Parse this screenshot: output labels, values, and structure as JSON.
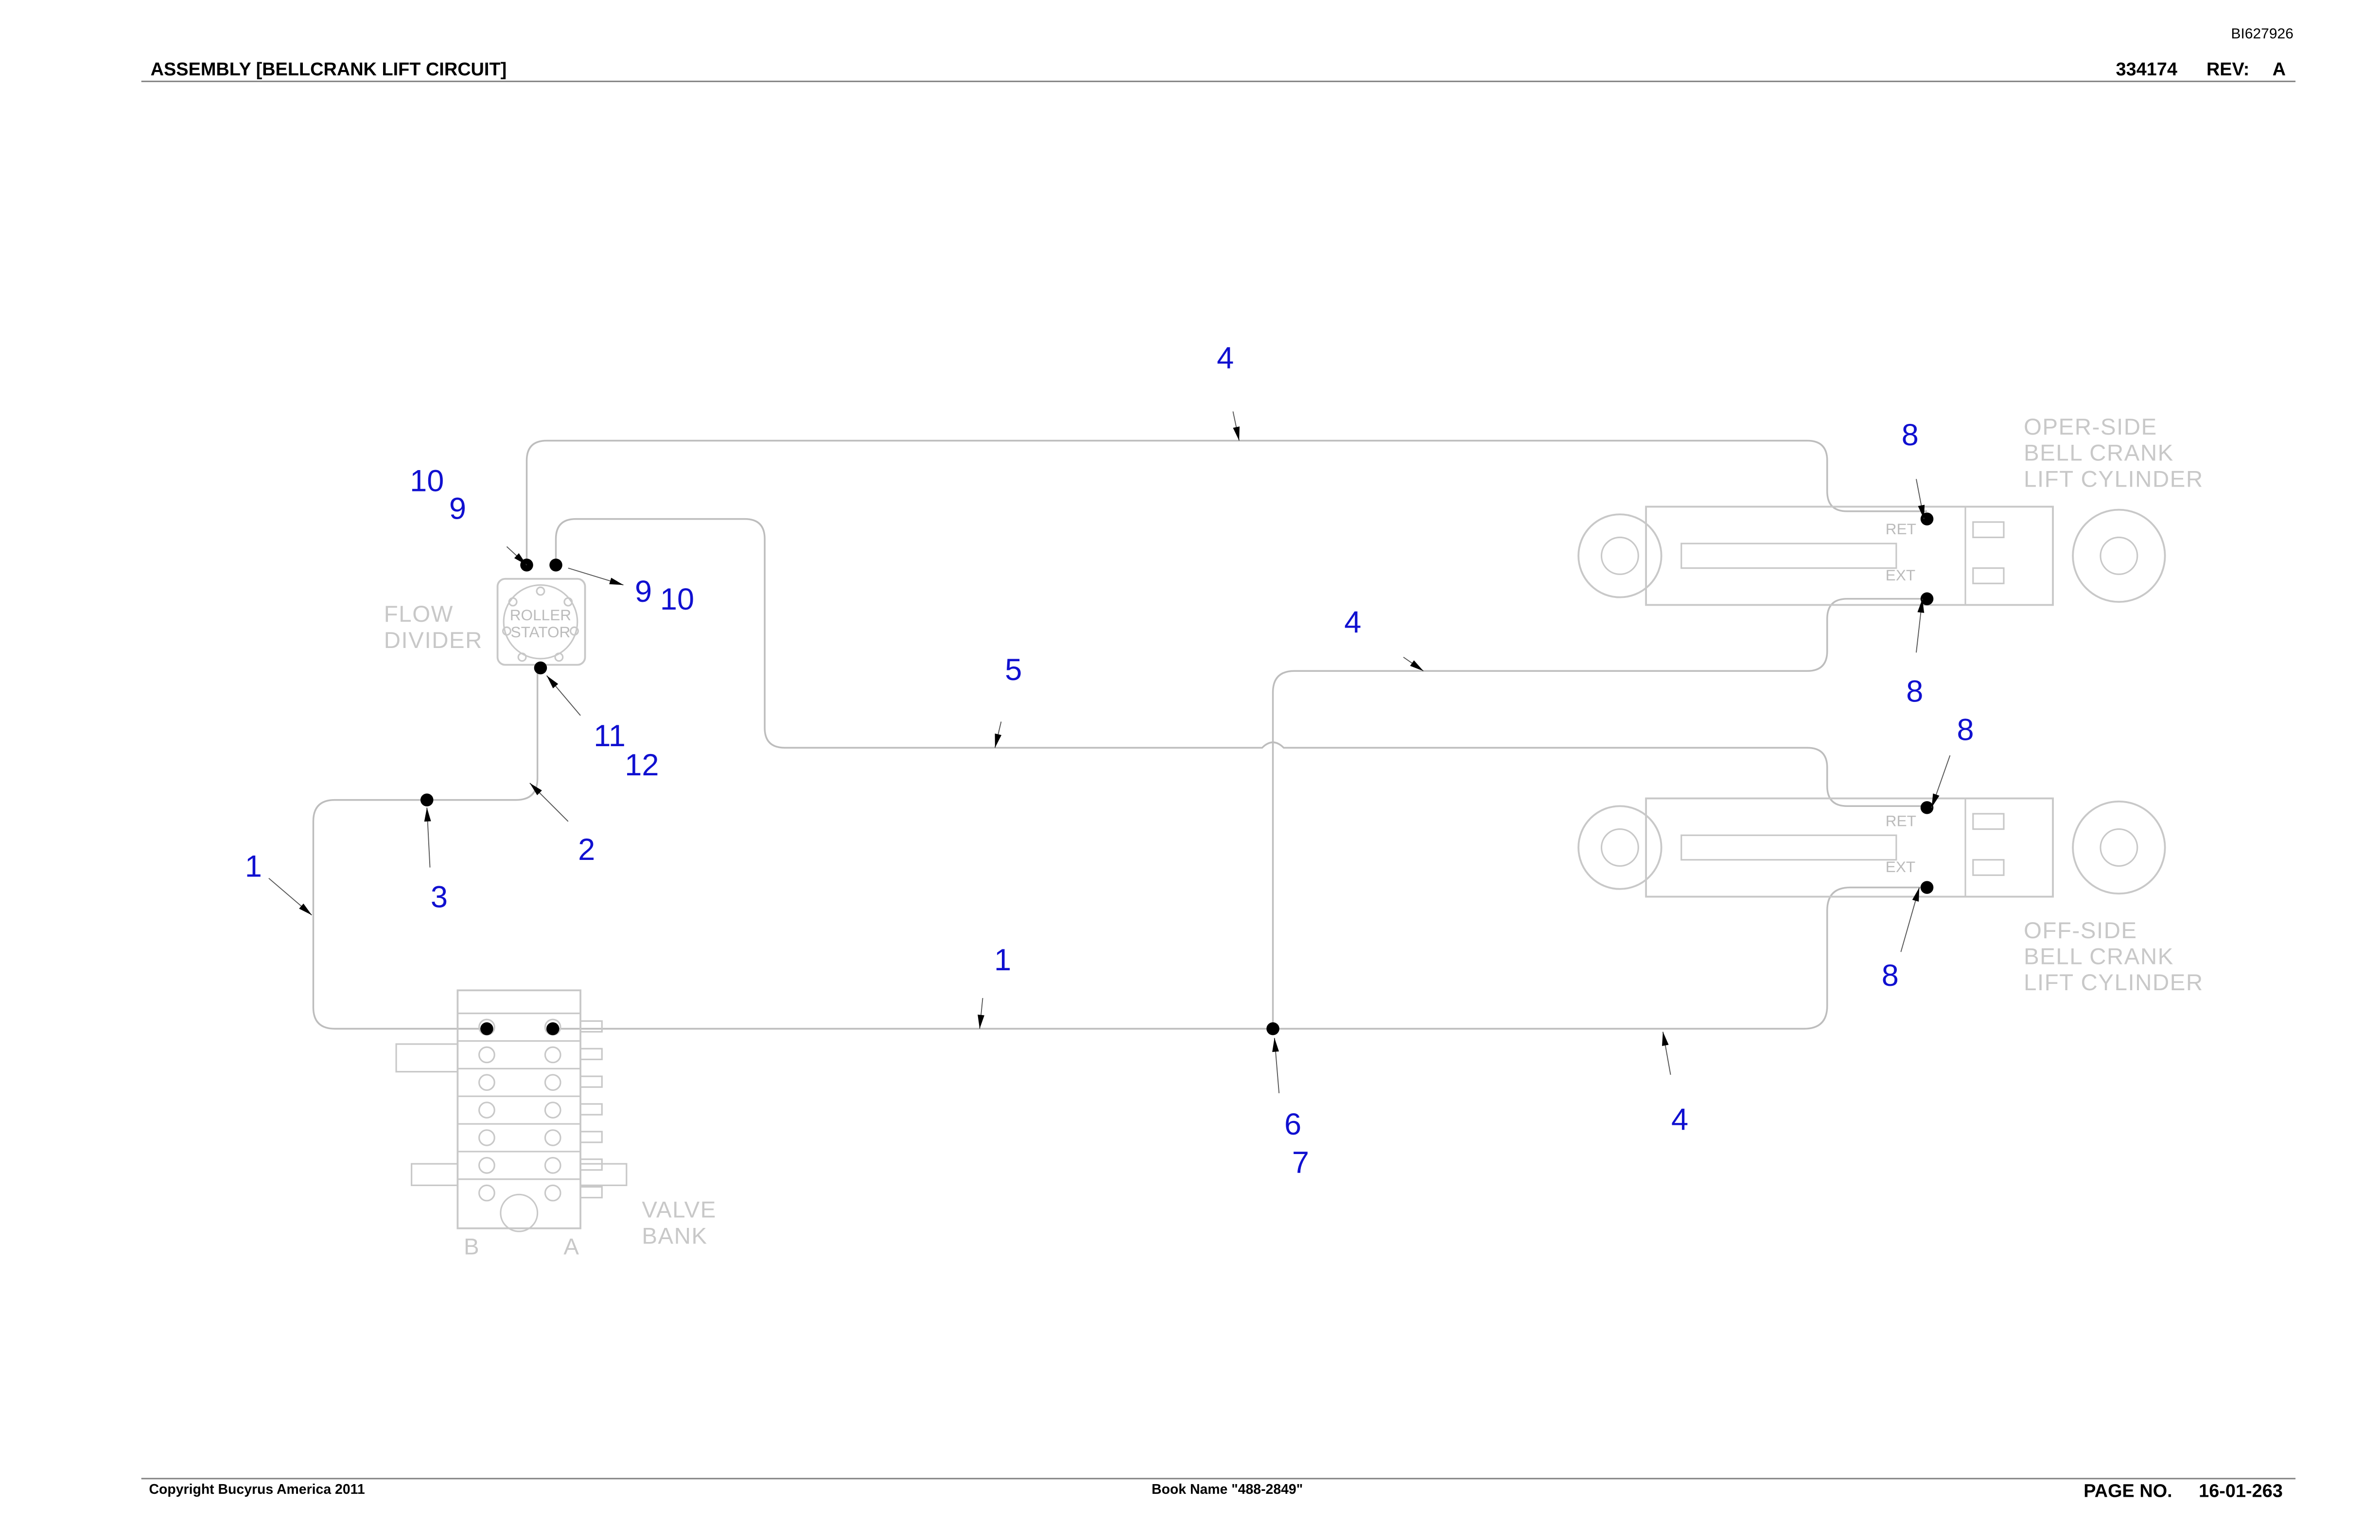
{
  "header": {
    "doc_id": "BI627926",
    "title": "ASSEMBLY [BELLCRANK LIFT CIRCUIT]",
    "part_number": "334174",
    "rev_label": "REV:",
    "rev": "A"
  },
  "components": {
    "flow_divider": [
      "FLOW",
      "DIVIDER"
    ],
    "roller_stator": [
      "ROLLER",
      "STATOR"
    ],
    "valve_bank": [
      "VALVE",
      "BANK"
    ],
    "valve_ports": [
      "B",
      "A"
    ],
    "oper_cylinder": {
      "label": [
        "OPER-SIDE",
        "BELL CRANK",
        "LIFT CYLINDER"
      ],
      "ret": "RET",
      "ext": "EXT"
    },
    "off_cylinder": {
      "label": [
        "OFF-SIDE",
        "BELL CRANK",
        "LIFT CYLINDER"
      ],
      "ret": "RET",
      "ext": "EXT"
    }
  },
  "callouts": [
    "4",
    "10",
    "9",
    "9",
    "10",
    "5",
    "4",
    "8",
    "8",
    "8",
    "8",
    "11",
    "12",
    "1",
    "2",
    "3",
    "1",
    "6",
    "7",
    "4"
  ],
  "footer": {
    "copyright": "Copyright Bucyrus America 2011",
    "book_name": "Book Name \"488-2849\"",
    "page_label": "PAGE NO.",
    "page": "16-01-263"
  }
}
